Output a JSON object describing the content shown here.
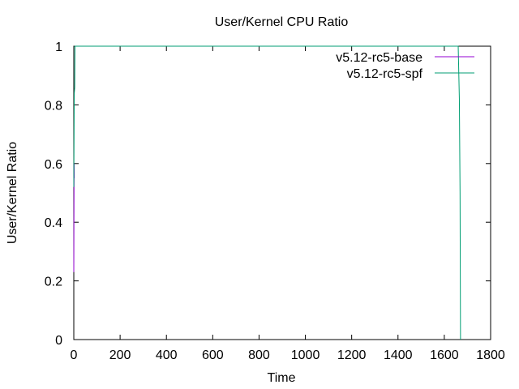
{
  "chart_data": {
    "type": "line",
    "title": "User/Kernel CPU Ratio",
    "xlabel": "Time",
    "ylabel": "User/Kernel Ratio",
    "xlim": [
      0,
      1800
    ],
    "ylim": [
      0,
      1
    ],
    "xticks": [
      0,
      200,
      400,
      600,
      800,
      1000,
      1200,
      1400,
      1600,
      1800
    ],
    "yticks": [
      0,
      0.2,
      0.4,
      0.6,
      0.8,
      1
    ],
    "xtick_labels": [
      "0",
      "200",
      "400",
      "600",
      "800",
      "1000",
      "1200",
      "1400",
      "1600",
      "1800"
    ],
    "ytick_labels": [
      "0",
      "0.2",
      "0.4",
      "0.6",
      "0.8",
      "1"
    ],
    "grid": false,
    "legend_position": "top-right",
    "series": [
      {
        "name": "v5.12-rc5-base",
        "color": "#9400d3",
        "x": [
          0,
          0.5,
          1,
          1.5,
          2
        ],
        "y": [
          0.23,
          0.38,
          0.52,
          0.6,
          0.55
        ]
      },
      {
        "name": "v5.12-rc5-spf",
        "color": "#009e73",
        "x": [
          0,
          2,
          4,
          5,
          6,
          1660,
          1665,
          1668,
          1670
        ],
        "y": [
          0.52,
          0.84,
          0.86,
          1.0,
          1.0,
          1.0,
          0.82,
          0.5,
          0.0
        ]
      }
    ]
  }
}
